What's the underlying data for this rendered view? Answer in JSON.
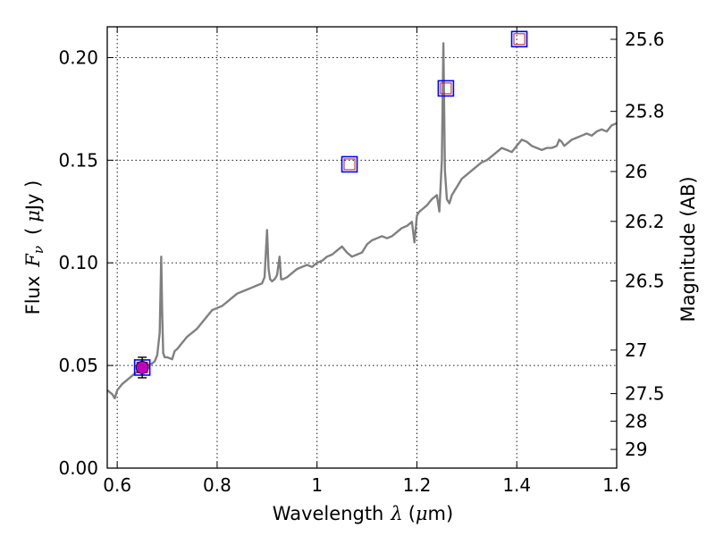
{
  "chart_data": {
    "type": "line",
    "title": "",
    "xlabel": {
      "text": "Wavelength",
      "symbol": "λ",
      "unit_open": "(",
      "unit_mu": "μ",
      "unit_rest": "m)"
    },
    "ylabel": {
      "text": "Flux",
      "symbol": "F",
      "sub": "ν",
      "unit_open": "(",
      "unit_mu": "μ",
      "unit_rest": "Jy )"
    },
    "y2label": "Magnitude (AB)",
    "xlim": [
      0.58,
      1.6
    ],
    "ylim": [
      0.0,
      0.215
    ],
    "xticks": [
      0.6,
      0.8,
      1.0,
      1.2,
      1.4,
      1.6
    ],
    "xtick_labels": [
      "0.6",
      "0.8",
      "1",
      "1.2",
      "1.4",
      "1.6"
    ],
    "yticks": [
      0.0,
      0.05,
      0.1,
      0.15,
      0.2
    ],
    "ytick_labels": [
      "0.00",
      "0.05",
      "0.10",
      "0.15",
      "0.20"
    ],
    "y2ticks": [
      {
        "label": "25.6",
        "flux": 0.2089
      },
      {
        "label": "25.8",
        "flux": 0.1738
      },
      {
        "label": "26",
        "flux": 0.1445
      },
      {
        "label": "26.2",
        "flux": 0.1202
      },
      {
        "label": "26.5",
        "flux": 0.0912
      },
      {
        "label": "27",
        "flux": 0.0575
      },
      {
        "label": "27.5",
        "flux": 0.0363
      },
      {
        "label": "28",
        "flux": 0.0229
      },
      {
        "label": "29",
        "flux": 0.0091
      }
    ],
    "grid": true,
    "series": [
      {
        "kind": "spectrum",
        "color": "#808080",
        "x": [
          0.58,
          0.59,
          0.595,
          0.6,
          0.61,
          0.62,
          0.63,
          0.64,
          0.65,
          0.66,
          0.67,
          0.675,
          0.68,
          0.685,
          0.688,
          0.69,
          0.692,
          0.695,
          0.7,
          0.71,
          0.715,
          0.72,
          0.73,
          0.74,
          0.75,
          0.76,
          0.77,
          0.78,
          0.79,
          0.8,
          0.81,
          0.82,
          0.83,
          0.84,
          0.85,
          0.86,
          0.87,
          0.88,
          0.89,
          0.895,
          0.9,
          0.903,
          0.906,
          0.91,
          0.915,
          0.92,
          0.925,
          0.928,
          0.932,
          0.94,
          0.95,
          0.96,
          0.97,
          0.98,
          0.99,
          1.0,
          1.01,
          1.02,
          1.03,
          1.04,
          1.05,
          1.06,
          1.07,
          1.08,
          1.09,
          1.1,
          1.11,
          1.12,
          1.13,
          1.14,
          1.15,
          1.16,
          1.17,
          1.18,
          1.19,
          1.195,
          1.2,
          1.205,
          1.21,
          1.22,
          1.23,
          1.24,
          1.245,
          1.25,
          1.253,
          1.256,
          1.26,
          1.265,
          1.27,
          1.28,
          1.29,
          1.3,
          1.31,
          1.32,
          1.33,
          1.34,
          1.35,
          1.36,
          1.37,
          1.38,
          1.39,
          1.4,
          1.41,
          1.42,
          1.43,
          1.44,
          1.45,
          1.46,
          1.47,
          1.48,
          1.485,
          1.49,
          1.495,
          1.5,
          1.51,
          1.52,
          1.53,
          1.54,
          1.55,
          1.56,
          1.57,
          1.58,
          1.59,
          1.6
        ],
        "y": [
          0.038,
          0.036,
          0.034,
          0.038,
          0.041,
          0.043,
          0.045,
          0.047,
          0.048,
          0.05,
          0.051,
          0.052,
          0.055,
          0.066,
          0.103,
          0.075,
          0.056,
          0.054,
          0.054,
          0.053,
          0.057,
          0.058,
          0.061,
          0.064,
          0.066,
          0.068,
          0.071,
          0.074,
          0.077,
          0.078,
          0.079,
          0.081,
          0.083,
          0.085,
          0.086,
          0.087,
          0.088,
          0.089,
          0.09,
          0.093,
          0.116,
          0.097,
          0.092,
          0.091,
          0.092,
          0.094,
          0.103,
          0.092,
          0.092,
          0.093,
          0.095,
          0.097,
          0.098,
          0.099,
          0.098,
          0.1,
          0.101,
          0.103,
          0.104,
          0.106,
          0.108,
          0.105,
          0.103,
          0.104,
          0.105,
          0.109,
          0.111,
          0.112,
          0.113,
          0.112,
          0.113,
          0.115,
          0.117,
          0.118,
          0.12,
          0.11,
          0.123,
          0.125,
          0.126,
          0.128,
          0.131,
          0.133,
          0.125,
          0.15,
          0.207,
          0.145,
          0.131,
          0.129,
          0.133,
          0.137,
          0.141,
          0.143,
          0.145,
          0.147,
          0.149,
          0.15,
          0.152,
          0.154,
          0.156,
          0.155,
          0.154,
          0.157,
          0.16,
          0.159,
          0.157,
          0.156,
          0.155,
          0.156,
          0.156,
          0.157,
          0.16,
          0.159,
          0.157,
          0.158,
          0.16,
          0.161,
          0.162,
          0.163,
          0.162,
          0.164,
          0.165,
          0.164,
          0.167,
          0.168
        ]
      },
      {
        "kind": "model_photometry",
        "name": "",
        "color": "#b22222",
        "x": [
          0.65,
          1.065,
          1.258,
          1.405
        ],
        "y": [
          0.049,
          0.148,
          0.185,
          0.209
        ]
      },
      {
        "kind": "observed_photometry",
        "name": "",
        "color": "#0000ff",
        "x": [
          0.65,
          1.065,
          1.258,
          1.405
        ],
        "y": [
          0.049,
          0.148,
          0.185,
          0.209
        ]
      },
      {
        "kind": "measured_point",
        "name": "",
        "color": "#bf00bf",
        "x": [
          0.65
        ],
        "y": [
          0.049
        ],
        "yerr": [
          0.005
        ]
      }
    ]
  }
}
